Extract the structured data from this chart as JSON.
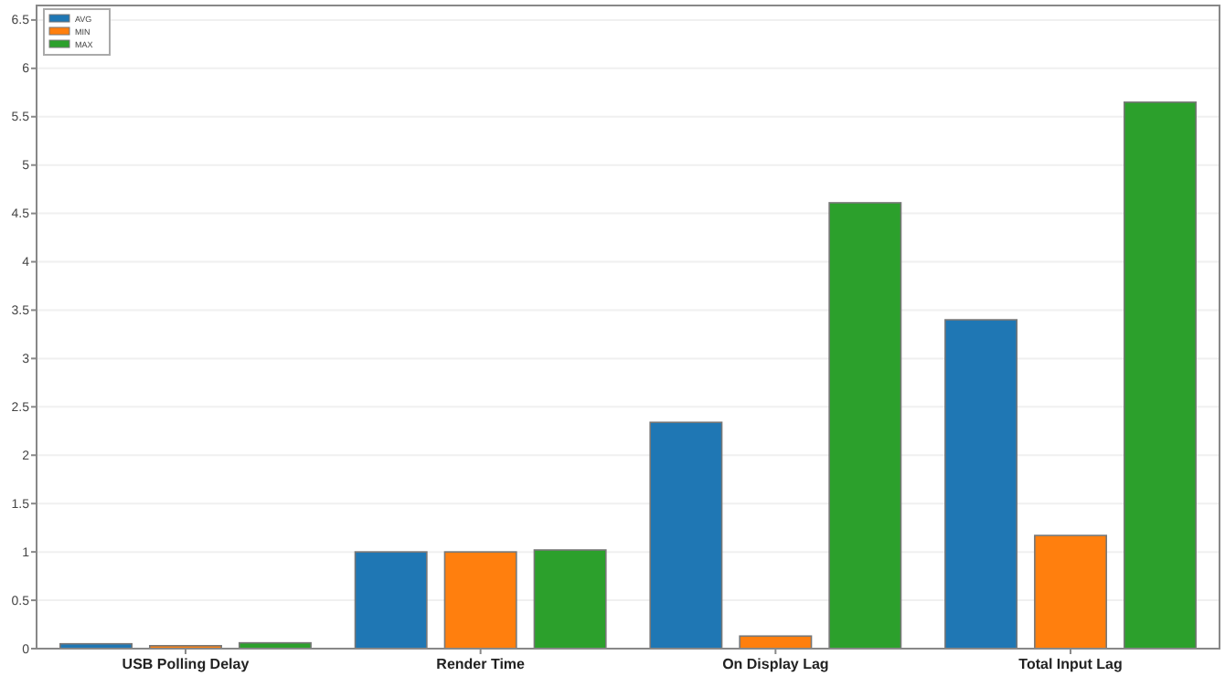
{
  "chart_data": {
    "type": "bar",
    "categories": [
      "USB Polling Delay",
      "Render Time",
      "On Display Lag",
      "Total Input Lag"
    ],
    "series": [
      {
        "name": "AVG",
        "color": "#1f77b4",
        "values": [
          0.05,
          1.0,
          2.34,
          3.4
        ]
      },
      {
        "name": "MIN",
        "color": "#ff7f0e",
        "values": [
          0.03,
          1.0,
          0.13,
          1.17
        ]
      },
      {
        "name": "MAX",
        "color": "#2ca02c",
        "values": [
          0.06,
          1.02,
          4.61,
          5.65
        ]
      }
    ],
    "ylim": [
      0,
      6.65
    ],
    "yticks": [
      0,
      0.5,
      1,
      1.5,
      2,
      2.5,
      3,
      3.5,
      4,
      4.5,
      5,
      5.5,
      6,
      6.5
    ],
    "grid": "y",
    "legend": "top left"
  }
}
